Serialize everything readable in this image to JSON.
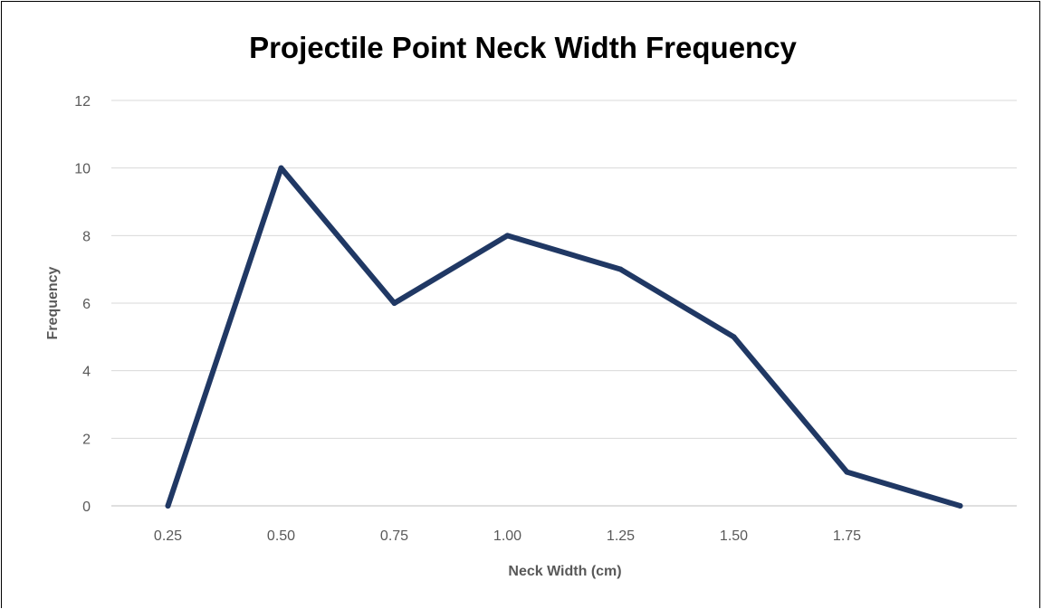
{
  "chart_data": {
    "type": "line",
    "title": "Projectile Point Neck Width Frequency",
    "xlabel": "Neck Width (cm)",
    "ylabel": "Frequency",
    "categories": [
      "0.25",
      "0.50",
      "0.75",
      "1.00",
      "1.25",
      "1.50",
      "1.75",
      ""
    ],
    "series": [
      {
        "values": [
          0,
          10,
          6,
          8,
          7,
          5,
          1,
          0
        ]
      }
    ],
    "ylim": [
      0,
      12
    ],
    "yticks": [
      "0",
      "2",
      "4",
      "6",
      "8",
      "10",
      "12"
    ],
    "grid": true,
    "legend": "none",
    "line_color": "#203864",
    "grid_color": "#d9d9d9",
    "axis_color": "#bfbfbf",
    "text_color": "#595959"
  }
}
